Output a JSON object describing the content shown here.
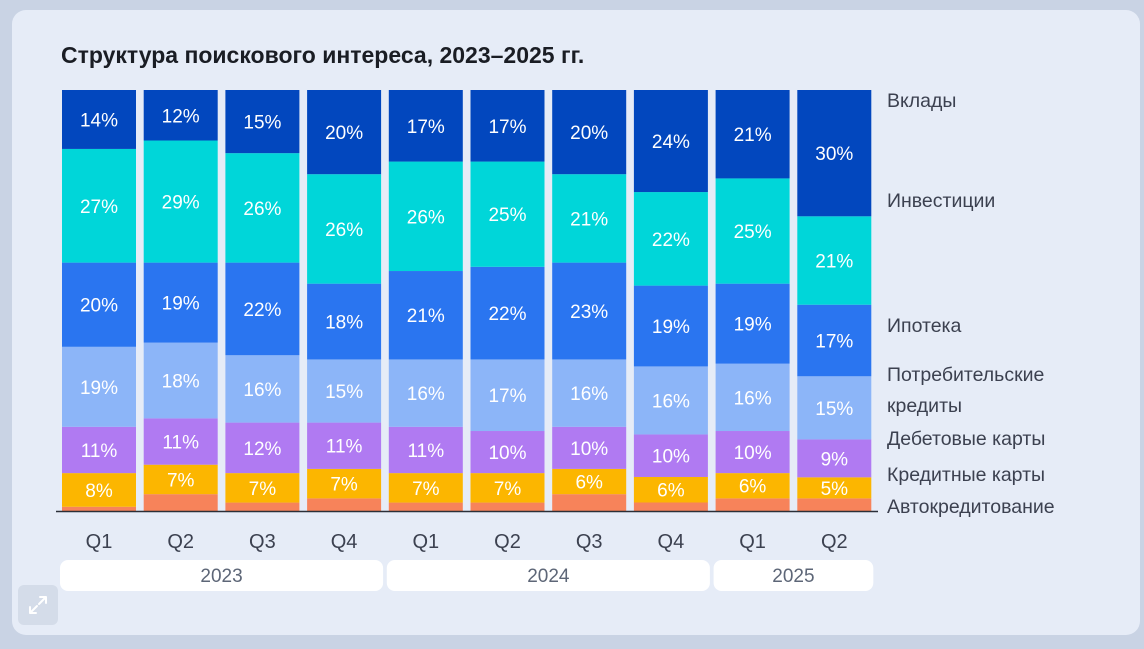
{
  "title": "Структура поискового интереса, 2023–2025 гг.",
  "icons": {
    "expand": "expand-icon"
  },
  "chart_data": {
    "type": "bar",
    "stacked": true,
    "normalized": true,
    "categories": [
      "Q1",
      "Q2",
      "Q3",
      "Q4",
      "Q1",
      "Q2",
      "Q3",
      "Q4",
      "Q1",
      "Q2"
    ],
    "groups": [
      {
        "label": "2023",
        "span": 4
      },
      {
        "label": "2024",
        "span": 4
      },
      {
        "label": "2025",
        "span": 2
      }
    ],
    "series": [
      {
        "name": "Автокредитование",
        "color": "#f7835a",
        "values": [
          1,
          4,
          2,
          3,
          2,
          2,
          4,
          2,
          3,
          3
        ],
        "show_labels": false
      },
      {
        "name": "Кредитные карты",
        "color": "#fcb600",
        "values": [
          8,
          7,
          7,
          7,
          7,
          7,
          6,
          6,
          6,
          5
        ],
        "show_labels": true
      },
      {
        "name": "Дебетовые карты",
        "color": "#b07af2",
        "values": [
          11,
          11,
          12,
          11,
          11,
          10,
          10,
          10,
          10,
          9
        ],
        "show_labels": true
      },
      {
        "name": "Потребительские кредиты",
        "color": "#8cb5f8",
        "values": [
          19,
          18,
          16,
          15,
          16,
          17,
          16,
          16,
          16,
          15
        ],
        "show_labels": true
      },
      {
        "name": "Ипотека",
        "color": "#2a75f0",
        "values": [
          20,
          19,
          22,
          18,
          21,
          22,
          23,
          19,
          19,
          17
        ],
        "show_labels": true
      },
      {
        "name": "Инвестиции",
        "color": "#00d6d9",
        "values": [
          27,
          29,
          26,
          26,
          26,
          25,
          21,
          22,
          25,
          21
        ],
        "show_labels": true
      },
      {
        "name": "Вклады",
        "color": "#0247be",
        "values": [
          14,
          12,
          15,
          20,
          17,
          17,
          20,
          24,
          21,
          30
        ],
        "show_labels": true
      }
    ],
    "label_suffix": "%",
    "legend_position": "right",
    "legend": [
      {
        "lines": [
          "Вклады"
        ]
      },
      {
        "lines": [
          "Инвестиции"
        ]
      },
      {
        "lines": [
          "Ипотека"
        ]
      },
      {
        "lines": [
          "Потребительские",
          "кредиты"
        ]
      },
      {
        "lines": [
          "Дебетовые карты"
        ]
      },
      {
        "lines": [
          "Кредитные карты"
        ]
      },
      {
        "lines": [
          "Автокредитование"
        ]
      }
    ],
    "xlabel": "",
    "ylabel": ""
  }
}
